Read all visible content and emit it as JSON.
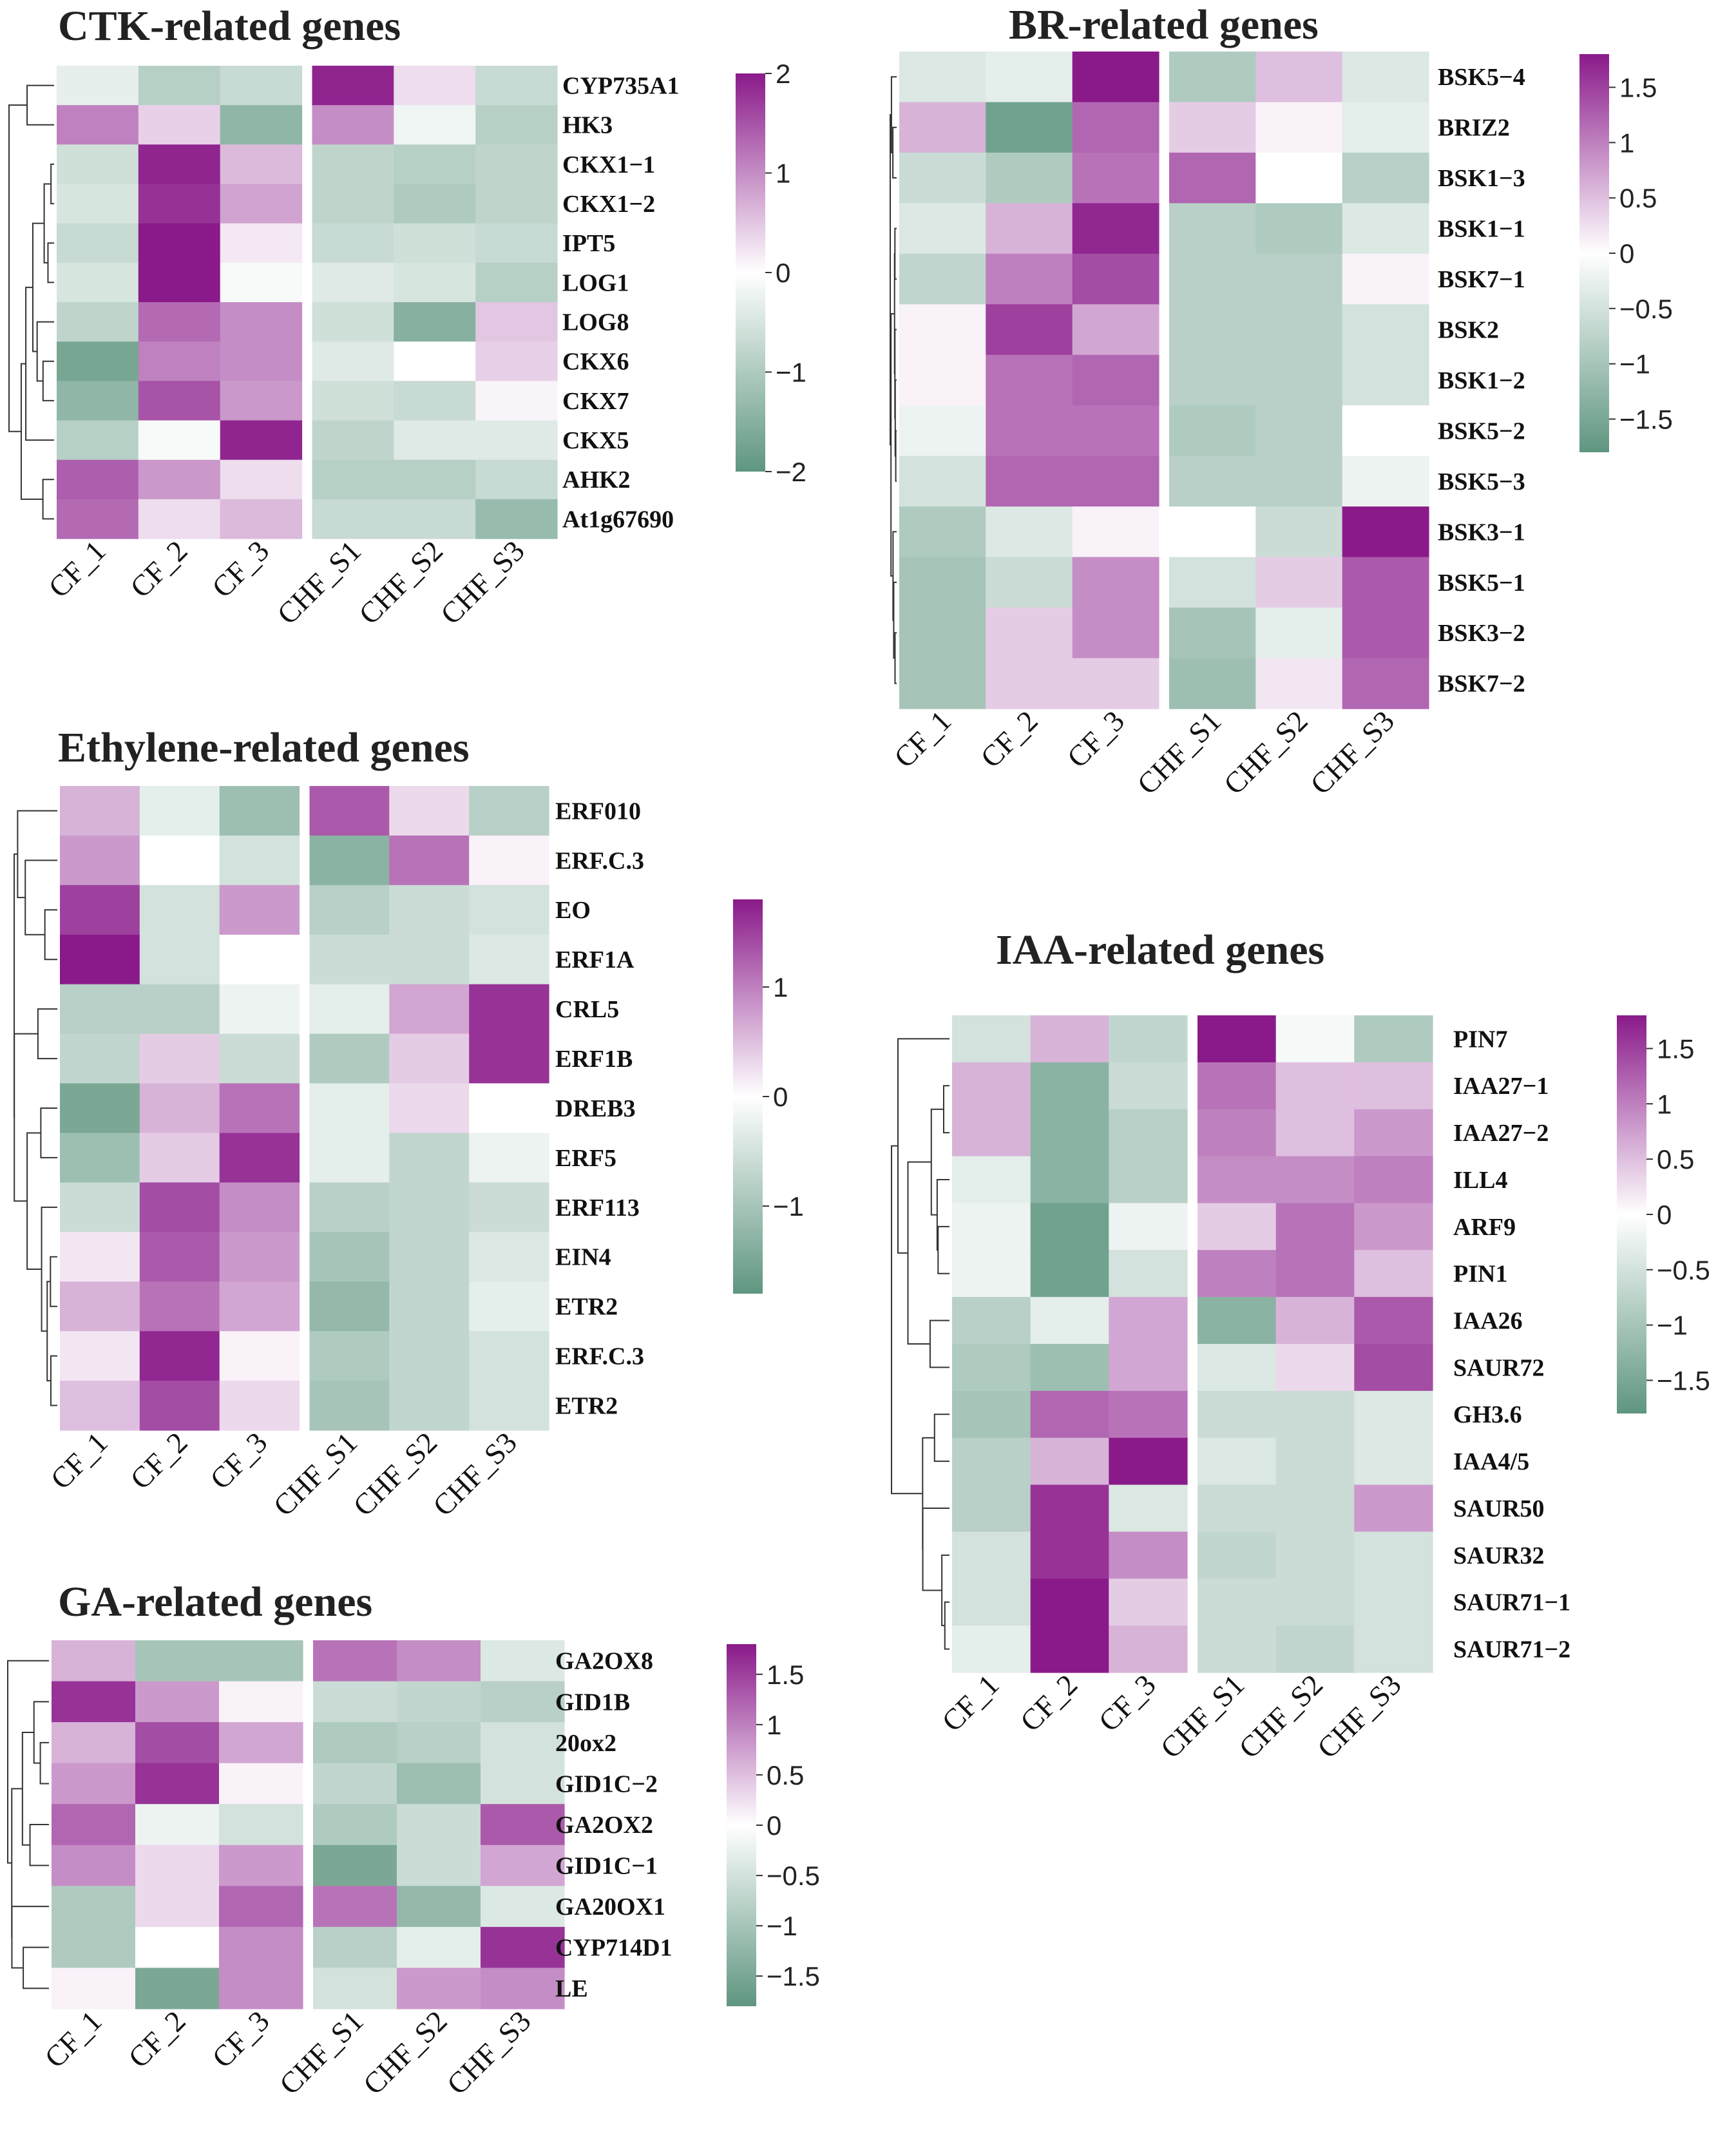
{
  "colors": {
    "low": "#5f9680",
    "mid": "#ffffff",
    "high": "#8a1a8a",
    "tree": "#333333"
  },
  "chart_data": [
    {
      "id": "ctk",
      "type": "heatmap",
      "title": "CTK-related genes",
      "columns": [
        "CF_1",
        "CF_2",
        "CF_3",
        "CHF_S1",
        "CHF_S2",
        "CHF_S3"
      ],
      "rows": [
        "CYP735A1",
        "HK3",
        "CKX1−1",
        "CKX1−2",
        "IPT5",
        "LOG1",
        "LOG8",
        "CKX6",
        "CKX7",
        "CKX5",
        "AHK2",
        "At1g67690"
      ],
      "values": [
        [
          -0.3,
          -0.9,
          -0.7,
          1.9,
          0.3,
          -0.7
        ],
        [
          1.1,
          0.4,
          -1.4,
          1.0,
          -0.2,
          -0.9
        ],
        [
          -0.6,
          1.9,
          0.6,
          -0.8,
          -0.9,
          -0.8
        ],
        [
          -0.5,
          1.8,
          0.8,
          -0.8,
          -1.0,
          -0.8
        ],
        [
          -0.7,
          2.0,
          0.2,
          -0.7,
          -0.6,
          -0.7
        ],
        [
          -0.5,
          2.0,
          -0.1,
          -0.4,
          -0.5,
          -0.9
        ],
        [
          -0.8,
          1.3,
          1.0,
          -0.6,
          -1.5,
          0.5
        ],
        [
          -1.7,
          1.1,
          1.0,
          -0.4,
          0.0,
          0.4
        ],
        [
          -1.4,
          1.5,
          0.9,
          -0.6,
          -0.7,
          0.1
        ],
        [
          -0.9,
          -0.1,
          1.9,
          -0.8,
          -0.4,
          -0.4
        ],
        [
          1.4,
          0.9,
          0.3,
          -0.9,
          -0.9,
          -0.7
        ],
        [
          1.3,
          0.3,
          0.6,
          -0.7,
          -0.7,
          -1.3
        ]
      ],
      "legend": {
        "ticks": [
          "2",
          "1",
          "0",
          "−1",
          "−2"
        ],
        "range": [
          -2,
          2
        ]
      }
    },
    {
      "id": "br",
      "type": "heatmap",
      "title": "BR-related genes",
      "columns": [
        "CF_1",
        "CF_2",
        "CF_3",
        "CHF_S1",
        "CHF_S2",
        "CHF_S3"
      ],
      "rows": [
        "BSK5−4",
        "BRIZ2",
        "BSK1−3",
        "BSK1−1",
        "BSK7−1",
        "BSK2",
        "BSK1−2",
        "BSK5−2",
        "BSK5−3",
        "BSK3−1",
        "BSK5−1",
        "BSK3−2",
        "BSK7−2"
      ],
      "values": [
        [
          -0.4,
          -0.3,
          1.8,
          -0.9,
          0.5,
          -0.4
        ],
        [
          0.6,
          -1.6,
          1.2,
          0.4,
          0.1,
          -0.3
        ],
        [
          -0.6,
          -0.9,
          1.1,
          1.2,
          0.0,
          -0.8
        ],
        [
          -0.4,
          0.6,
          1.7,
          -0.8,
          -0.9,
          -0.4
        ],
        [
          -0.7,
          1.0,
          1.4,
          -0.8,
          -0.8,
          0.1
        ],
        [
          0.1,
          1.5,
          0.7,
          -0.8,
          -0.8,
          -0.5
        ],
        [
          0.1,
          1.1,
          1.2,
          -0.8,
          -0.8,
          -0.5
        ],
        [
          -0.2,
          1.1,
          1.1,
          -0.9,
          -0.8,
          0.0
        ],
        [
          -0.5,
          1.2,
          1.2,
          -0.8,
          -0.8,
          -0.2
        ],
        [
          -0.9,
          -0.4,
          0.1,
          0.0,
          -0.6,
          1.8
        ],
        [
          -1.0,
          -0.6,
          0.9,
          -0.5,
          0.4,
          1.3
        ],
        [
          -1.0,
          0.4,
          0.9,
          -1.0,
          -0.3,
          1.3
        ],
        [
          -1.0,
          0.4,
          0.4,
          -1.1,
          0.2,
          1.2
        ]
      ],
      "legend": {
        "ticks": [
          "1.5",
          "1",
          "0.5",
          "0",
          "−0.5",
          "−1",
          "−1.5"
        ],
        "range": [
          -1.8,
          1.8
        ]
      }
    },
    {
      "id": "eth",
      "type": "heatmap",
      "title": "Ethylene-related genes",
      "columns": [
        "CF_1",
        "CF_2",
        "CF_3",
        "CHF_S1",
        "CHF_S2",
        "CHF_S3"
      ],
      "rows": [
        "ERF010",
        "ERF.C.3",
        "EO",
        "ERF1A",
        "CRL5",
        "ERF1B",
        "DREB3",
        "ERF5",
        "ERF113",
        "EIN4",
        "ETR2",
        "ERF.C.3",
        "ETR2"
      ],
      "values": [
        [
          0.6,
          -0.3,
          -1.1,
          1.3,
          0.3,
          -0.8
        ],
        [
          0.8,
          0.0,
          -0.5,
          -1.3,
          1.1,
          0.1
        ],
        [
          1.5,
          -0.5,
          0.8,
          -0.8,
          -0.6,
          -0.5
        ],
        [
          1.9,
          -0.5,
          0.0,
          -0.6,
          -0.6,
          -0.4
        ],
        [
          -0.8,
          -0.8,
          -0.2,
          -0.3,
          0.7,
          1.6
        ],
        [
          -0.7,
          0.4,
          -0.6,
          -0.9,
          0.4,
          1.6
        ],
        [
          -1.5,
          0.6,
          1.1,
          -0.3,
          0.3,
          0.0
        ],
        [
          -1.1,
          0.4,
          1.6,
          -0.3,
          -0.7,
          -0.2
        ],
        [
          -0.6,
          1.4,
          0.9,
          -0.8,
          -0.7,
          -0.6
        ],
        [
          0.2,
          1.3,
          0.8,
          -1.0,
          -0.7,
          -0.4
        ],
        [
          0.6,
          1.1,
          0.7,
          -1.2,
          -0.7,
          -0.3
        ],
        [
          0.2,
          1.7,
          0.1,
          -0.9,
          -0.7,
          -0.5
        ],
        [
          0.5,
          1.4,
          0.3,
          -1.0,
          -0.7,
          -0.5
        ]
      ],
      "legend": {
        "ticks": [
          "1",
          "0",
          "−1"
        ],
        "range": [
          -1.8,
          1.8
        ]
      }
    },
    {
      "id": "ga",
      "type": "heatmap",
      "title": "GA-related genes",
      "columns": [
        "CF_1",
        "CF_2",
        "CF_3",
        "CHF_S1",
        "CHF_S2",
        "CHF_S3"
      ],
      "rows": [
        "GA2OX8",
        "GID1B",
        "20ox2",
        "GID1C−2",
        "GA2OX2",
        "GID1C−1",
        "GA20OX1",
        "CYP714D1",
        "LE"
      ],
      "values": [
        [
          0.6,
          -1.0,
          -1.0,
          1.1,
          0.9,
          -0.4
        ],
        [
          1.6,
          0.8,
          0.1,
          -0.6,
          -0.7,
          -0.8
        ],
        [
          0.6,
          1.4,
          0.7,
          -0.9,
          -0.8,
          -0.5
        ],
        [
          0.8,
          1.6,
          0.1,
          -0.7,
          -1.1,
          -0.5
        ],
        [
          1.2,
          -0.2,
          -0.5,
          -0.9,
          -0.6,
          1.3
        ],
        [
          0.9,
          0.3,
          0.8,
          -1.5,
          -0.6,
          0.7
        ],
        [
          -0.9,
          0.3,
          1.2,
          1.1,
          -1.2,
          -0.4
        ],
        [
          -0.9,
          0.0,
          0.9,
          -0.8,
          -0.3,
          1.6
        ],
        [
          0.1,
          -1.5,
          0.9,
          -0.5,
          0.8,
          0.9
        ]
      ],
      "legend": {
        "ticks": [
          "1.5",
          "1",
          "0.5",
          "0",
          "−0.5",
          "−1",
          "−1.5"
        ],
        "range": [
          -1.8,
          1.8
        ]
      }
    },
    {
      "id": "iaa",
      "type": "heatmap",
      "title": "IAA-related genes",
      "columns": [
        "CF_1",
        "CF_2",
        "CF_3",
        "CHF_S1",
        "CHF_S2",
        "CHF_S3"
      ],
      "rows": [
        "PIN7",
        "IAA27−1",
        "IAA27−2",
        "ILL4",
        "ARF9",
        "PIN1",
        "IAA26",
        "SAUR72",
        "GH3.6",
        "IAA4/5",
        "SAUR50",
        "SAUR32",
        "SAUR71−1",
        "SAUR71−2"
      ],
      "values": [
        [
          -0.5,
          0.6,
          -0.7,
          1.8,
          -0.1,
          -0.9
        ],
        [
          0.6,
          -1.3,
          -0.6,
          1.1,
          0.5,
          0.5
        ],
        [
          0.6,
          -1.3,
          -0.8,
          1.0,
          0.5,
          0.8
        ],
        [
          -0.3,
          -1.3,
          -0.8,
          0.9,
          0.9,
          1.0
        ],
        [
          -0.2,
          -1.6,
          -0.2,
          0.4,
          1.1,
          0.8
        ],
        [
          -0.2,
          -1.6,
          -0.5,
          1.0,
          1.1,
          0.5
        ],
        [
          -0.8,
          -0.3,
          0.7,
          -1.3,
          0.6,
          1.3
        ],
        [
          -0.9,
          -1.1,
          0.7,
          -0.4,
          0.3,
          1.4
        ],
        [
          -1.0,
          1.2,
          1.1,
          -0.6,
          -0.6,
          -0.4
        ],
        [
          -0.8,
          0.6,
          1.8,
          -0.4,
          -0.6,
          -0.4
        ],
        [
          -0.8,
          1.6,
          -0.4,
          -0.6,
          -0.6,
          0.8
        ],
        [
          -0.5,
          1.6,
          0.9,
          -0.7,
          -0.6,
          -0.5
        ],
        [
          -0.5,
          1.8,
          0.4,
          -0.6,
          -0.6,
          -0.5
        ],
        [
          -0.3,
          1.8,
          0.6,
          -0.6,
          -0.7,
          -0.5
        ]
      ],
      "legend": {
        "ticks": [
          "1.5",
          "1",
          "0.5",
          "0",
          "−0.5",
          "−1",
          "−1.5"
        ],
        "range": [
          -1.8,
          1.8
        ]
      }
    }
  ]
}
